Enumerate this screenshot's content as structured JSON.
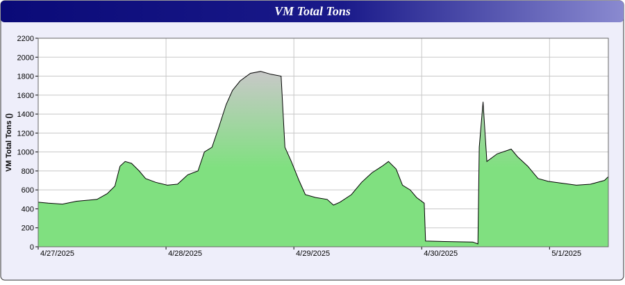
{
  "chart_data": {
    "type": "area",
    "title": "VM Total Tons",
    "y_label": "VM Total Tons ()",
    "x": [
      0,
      0.08,
      0.19,
      0.3,
      0.46,
      0.54,
      0.6,
      0.64,
      0.68,
      0.73,
      0.79,
      0.84,
      0.92,
      1.01,
      1.09,
      1.17,
      1.25,
      1.3,
      1.36,
      1.41,
      1.47,
      1.52,
      1.58,
      1.66,
      1.74,
      1.82,
      1.9,
      1.93,
      1.98,
      2.04,
      2.09,
      2.17,
      2.26,
      2.31,
      2.36,
      2.45,
      2.53,
      2.61,
      2.69,
      2.74,
      2.8,
      2.85,
      2.91,
      2.96,
      3.02,
      3.03,
      3.18,
      3.4,
      3.44,
      3.45,
      3.48,
      3.51,
      3.59,
      3.7,
      3.75,
      3.83,
      3.91,
      3.99,
      4.1,
      4.21,
      4.32,
      4.43,
      4.46
    ],
    "series": [
      {
        "name": "VM Total Tons",
        "color": "#80e080",
        "values": [
          470,
          460,
          450,
          480,
          500,
          560,
          640,
          850,
          900,
          880,
          800,
          720,
          680,
          650,
          660,
          760,
          800,
          1000,
          1050,
          1250,
          1500,
          1650,
          1750,
          1830,
          1850,
          1820,
          1800,
          1050,
          900,
          700,
          550,
          520,
          500,
          440,
          470,
          550,
          680,
          780,
          850,
          900,
          820,
          650,
          600,
          520,
          460,
          60,
          55,
          50,
          30,
          1050,
          1530,
          900,
          980,
          1030,
          950,
          850,
          720,
          690,
          670,
          650,
          660,
          700,
          740
        ]
      }
    ],
    "xlim": [
      0,
      4.46
    ],
    "xticks": [
      {
        "value": 0,
        "label": "4/27/2025"
      },
      {
        "value": 1,
        "label": "4/28/2025"
      },
      {
        "value": 2,
        "label": "4/29/2025"
      },
      {
        "value": 3,
        "label": "4/30/2025"
      },
      {
        "value": 4,
        "label": "5/1/2025"
      }
    ],
    "ylim": [
      0,
      2200
    ],
    "yticks": [
      0,
      200,
      400,
      600,
      800,
      1000,
      1200,
      1400,
      1600,
      1800,
      2000,
      2200
    ],
    "grid": true
  }
}
